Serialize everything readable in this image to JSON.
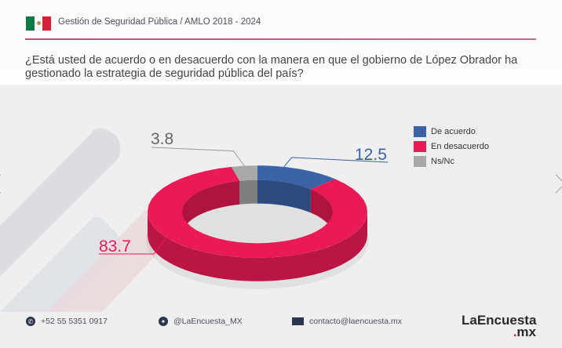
{
  "header": {
    "title": "Gestión de Seguridad Pública / AMLO 2018 - 2024",
    "flag_icon": "mexico-flag-icon"
  },
  "question": "¿Está usted de acuerdo o en desacuerdo con la manera en que el gobierno de López Obrador ha gestionado la estrategia de seguridad pública del país?",
  "chart_data": {
    "type": "pie",
    "subtype": "3d-donut",
    "title": "¿Está usted de acuerdo o en desacuerdo con la manera en que el gobierno de López Obrador ha gestionado la estrategia de seguridad pública del país?",
    "categories": [
      "De acuerdo",
      "En desacuerdo",
      "Ns/Nc"
    ],
    "values": [
      12.5,
      83.7,
      3.8
    ],
    "colors": [
      "#3a63a8",
      "#e91a56",
      "#a8a8a8"
    ],
    "data_labels": [
      "12.5",
      "83.7",
      "3.8"
    ],
    "legend": "top-right"
  },
  "legend": {
    "items": [
      {
        "label": "De acuerdo",
        "color": "#3a63a8"
      },
      {
        "label": "En desacuerdo",
        "color": "#e91a56"
      },
      {
        "label": "Ns/Nc",
        "color": "#a8a8a8"
      }
    ]
  },
  "labels": {
    "de_acuerdo": "12.5",
    "en_desacuerdo": "83.7",
    "nsnc": "3.8"
  },
  "footer": {
    "phone": "+52 55 5351 0917",
    "twitter": "@LaEncuesta_MX",
    "email": "contacto@laencuesta.mx",
    "logo_main": "LaEncuesta",
    "logo_dot": ".",
    "logo_suffix": "mx"
  },
  "nav": {
    "prev_icon": "chevron-left-icon",
    "next_icon": "chevron-right-icon"
  }
}
